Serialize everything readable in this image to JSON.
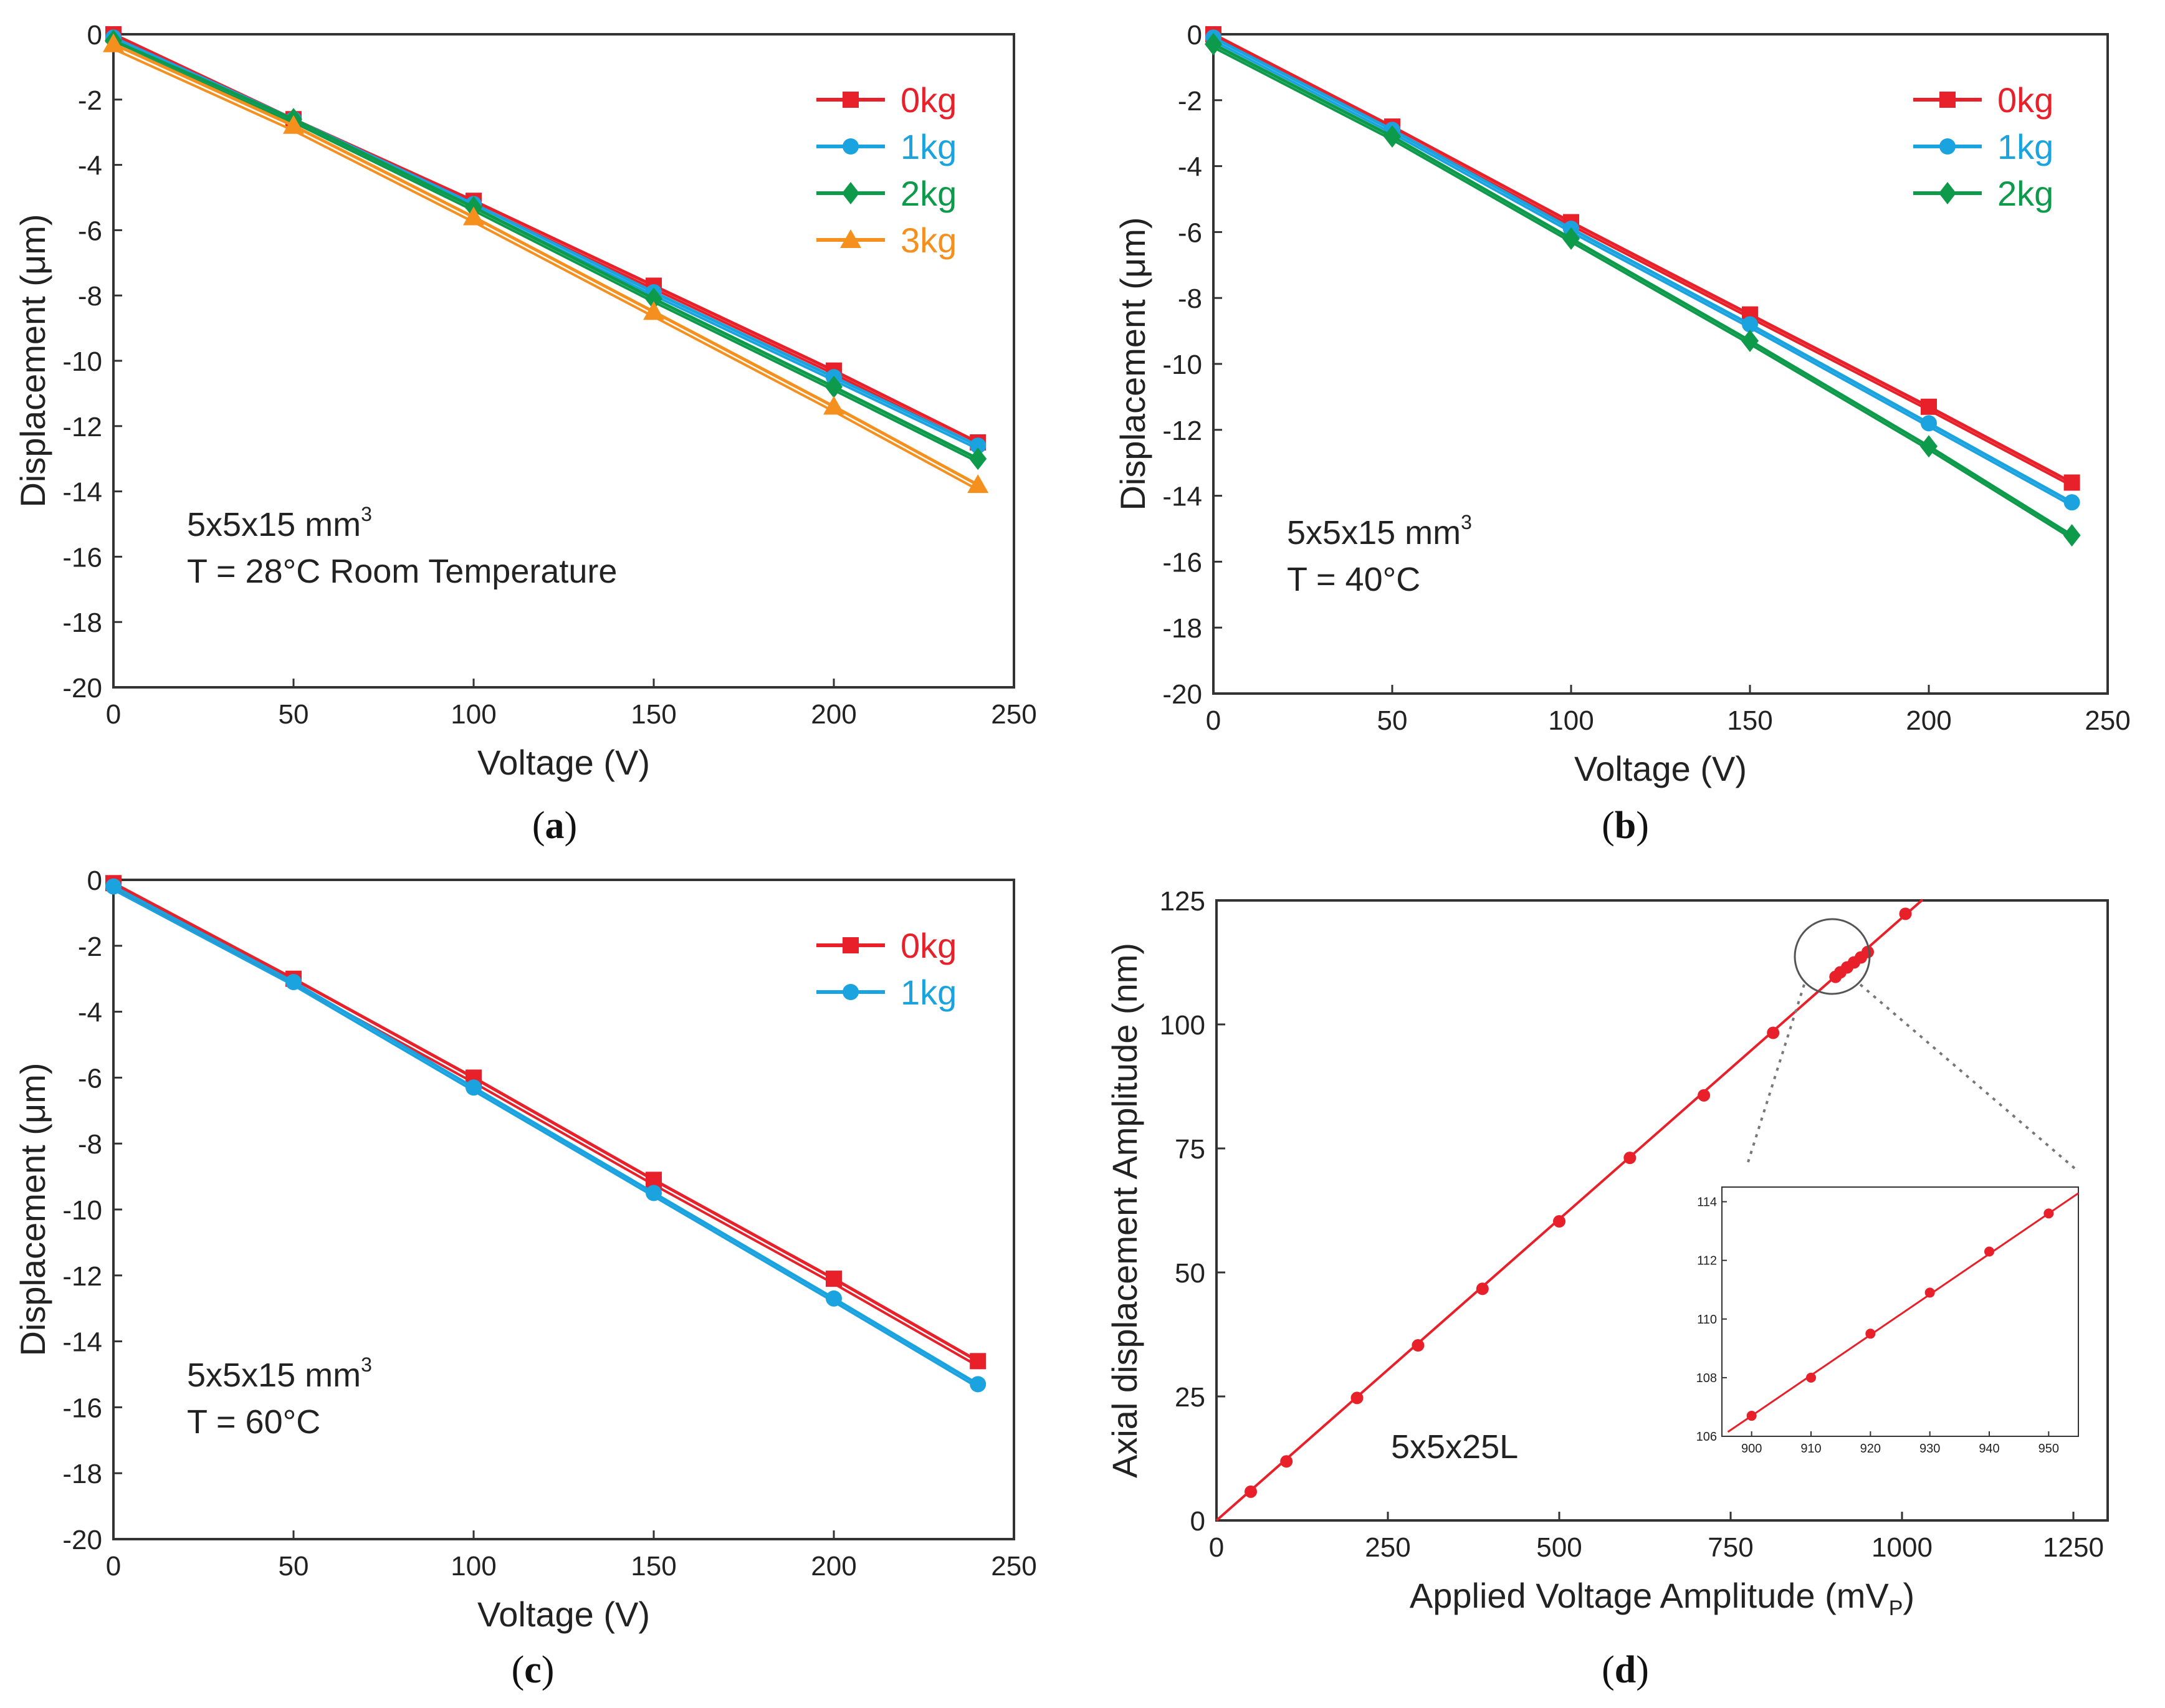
{
  "colors": {
    "0kg": "#e8202a",
    "1kg": "#1aa3df",
    "2kg": "#0d9a4a",
    "3kg": "#f5901e",
    "axis": "#333333",
    "inset_line": "#e8202a"
  },
  "chart_data": [
    {
      "id": "a",
      "panel_label": "a",
      "type": "line",
      "xlabel": "Voltage (V)",
      "ylabel": "Displacement (μm)",
      "xlim": [
        0,
        250
      ],
      "ylim": [
        -20,
        0
      ],
      "xticks": [
        0,
        50,
        100,
        150,
        200,
        250
      ],
      "yticks": [
        0,
        -2,
        -4,
        -6,
        -8,
        -10,
        -12,
        -14,
        -16,
        -18,
        -20
      ],
      "annotation": {
        "dims": "5x5x15 mm",
        "sup": "3",
        "cond": "T = 28°C Room Temperature"
      },
      "x": [
        0,
        50,
        100,
        150,
        200,
        240
      ],
      "series": [
        {
          "name": "0kg",
          "color": "#e8202a",
          "marker": "square",
          "values": [
            0,
            -2.6,
            -5.1,
            -7.7,
            -10.3,
            -12.5
          ],
          "dual_offset": 0.1
        },
        {
          "name": "1kg",
          "color": "#1aa3df",
          "marker": "circle",
          "values": [
            -0.1,
            -2.6,
            -5.2,
            -7.9,
            -10.5,
            -12.6
          ],
          "dual_offset": 0.1
        },
        {
          "name": "2kg",
          "color": "#0d9a4a",
          "marker": "diamond",
          "values": [
            -0.2,
            -2.6,
            -5.3,
            -8.1,
            -10.8,
            -13.0
          ],
          "dual_offset": 0.1
        },
        {
          "name": "3kg",
          "color": "#f5901e",
          "marker": "triangle",
          "values": [
            -0.3,
            -2.8,
            -5.6,
            -8.5,
            -11.4,
            -13.8
          ],
          "dual_offset": 0.15
        }
      ]
    },
    {
      "id": "b",
      "panel_label": "b",
      "type": "line",
      "xlabel": "Voltage (V)",
      "ylabel": "Displacement (μm)",
      "xlim": [
        0,
        250
      ],
      "ylim": [
        -20,
        0
      ],
      "xticks": [
        0,
        50,
        100,
        150,
        200,
        250
      ],
      "yticks": [
        0,
        -2,
        -4,
        -6,
        -8,
        -10,
        -12,
        -14,
        -16,
        -18,
        -20
      ],
      "annotation": {
        "dims": "5x5x15 mm",
        "sup": "3",
        "cond": "T = 40°C"
      },
      "x": [
        0,
        50,
        100,
        150,
        200,
        240
      ],
      "series": [
        {
          "name": "0kg",
          "color": "#e8202a",
          "marker": "square",
          "values": [
            0,
            -2.8,
            -5.7,
            -8.5,
            -11.3,
            -13.6
          ],
          "dual_offset": 0.1
        },
        {
          "name": "1kg",
          "color": "#1aa3df",
          "marker": "circle",
          "values": [
            -0.1,
            -2.9,
            -5.9,
            -8.8,
            -11.8,
            -14.2
          ],
          "dual_offset": 0.1
        },
        {
          "name": "2kg",
          "color": "#0d9a4a",
          "marker": "diamond",
          "values": [
            -0.3,
            -3.1,
            -6.2,
            -9.3,
            -12.5,
            -15.2
          ],
          "dual_offset": 0.1
        }
      ]
    },
    {
      "id": "c",
      "panel_label": "c",
      "type": "line",
      "xlabel": "Voltage (V)",
      "ylabel": "Displacement (μm)",
      "xlim": [
        0,
        250
      ],
      "ylim": [
        -20,
        0
      ],
      "xticks": [
        0,
        50,
        100,
        150,
        200,
        250
      ],
      "yticks": [
        0,
        -2,
        -4,
        -6,
        -8,
        -10,
        -12,
        -14,
        -16,
        -18,
        -20
      ],
      "annotation": {
        "dims": "5x5x15 mm",
        "sup": "3",
        "cond": "T = 60°C"
      },
      "x": [
        0,
        50,
        100,
        150,
        200,
        240
      ],
      "series": [
        {
          "name": "0kg",
          "color": "#e8202a",
          "marker": "square",
          "values": [
            -0.1,
            -3.0,
            -6.0,
            -9.1,
            -12.1,
            -14.6
          ],
          "dual_offset": 0.15
        },
        {
          "name": "1kg",
          "color": "#1aa3df",
          "marker": "circle",
          "values": [
            -0.2,
            -3.1,
            -6.3,
            -9.5,
            -12.7,
            -15.3
          ],
          "dual_offset": 0.1
        }
      ]
    },
    {
      "id": "d",
      "panel_label": "d",
      "type": "scatter",
      "xlabel": "Applied Voltage Amplitude (mV",
      "xlabel_sub": "P",
      "xlabel_end": ")",
      "ylabel": "Axial displacement Amplitude (nm)",
      "xlim": [
        0,
        1300
      ],
      "ylim": [
        0,
        125
      ],
      "xticks": [
        0,
        250,
        500,
        750,
        1000,
        1250
      ],
      "yticks": [
        0,
        25,
        50,
        75,
        100,
        125
      ],
      "annotation": {
        "text": "5x5x25L"
      },
      "fit_line": {
        "slope": 0.1215,
        "x0": 0,
        "x1": 1030
      },
      "x": [
        50,
        102,
        205,
        294,
        388,
        500,
        603,
        711,
        812,
        903,
        910,
        920,
        930,
        940,
        950,
        1005
      ],
      "values": [
        5.8,
        11.9,
        24.7,
        35.3,
        46.7,
        60.3,
        73.1,
        85.7,
        98.3,
        109.6,
        110.5,
        111.5,
        112.5,
        113.5,
        114.6,
        122.3
      ],
      "inset": {
        "xlim": [
          895,
          955
        ],
        "ylim": [
          106,
          114.5
        ],
        "xticks": [
          900,
          910,
          920,
          930,
          940,
          950
        ],
        "yticks": [
          106,
          108,
          110,
          112,
          114
        ],
        "x": [
          900,
          910,
          920,
          930,
          940,
          950
        ],
        "values": [
          106.7,
          108.0,
          109.5,
          110.9,
          112.3,
          113.6
        ]
      }
    }
  ]
}
